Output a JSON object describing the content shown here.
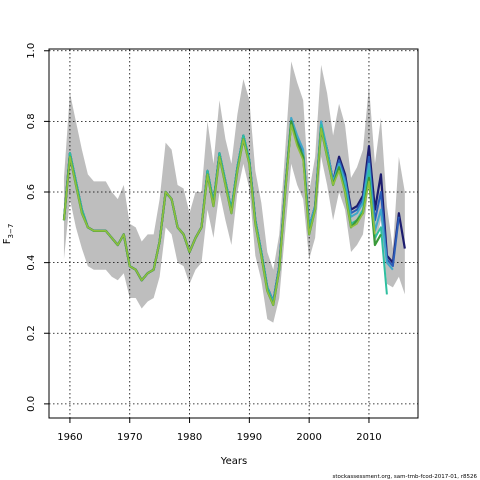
{
  "chart_data": {
    "type": "line",
    "xlabel": "Years",
    "ylabel_main": "F",
    "ylabel_sub": "3−7",
    "credit": "stockassessment.org, sam-tmb-fcod-2017-01, r8526",
    "xlim": [
      1956.5,
      2018.2
    ],
    "ylim": [
      -0.04,
      1.005
    ],
    "x_ticks": [
      1960,
      1970,
      1980,
      1990,
      2000,
      2010
    ],
    "y_ticks": [
      0.0,
      0.2,
      0.4,
      0.6,
      0.8,
      1.0
    ],
    "y_tick_labels": [
      "0.0",
      "0.2",
      "0.4",
      "0.6",
      "0.8",
      "1.0"
    ],
    "grid": true,
    "band_color": "#bebebe",
    "band": {
      "x": [
        1959,
        1960,
        1961,
        1962,
        1963,
        1964,
        1965,
        1966,
        1967,
        1968,
        1969,
        1970,
        1971,
        1972,
        1973,
        1974,
        1975,
        1976,
        1977,
        1978,
        1979,
        1980,
        1981,
        1982,
        1983,
        1984,
        1985,
        1986,
        1987,
        1988,
        1989,
        1990,
        1991,
        1992,
        1993,
        1994,
        1995,
        1996,
        1997,
        1998,
        1999,
        2000,
        2001,
        2002,
        2003,
        2004,
        2005,
        2006,
        2007,
        2008,
        2009,
        2010,
        2011,
        2012,
        2013,
        2014,
        2015,
        2016
      ],
      "upper": [
        0.64,
        0.88,
        0.8,
        0.72,
        0.65,
        0.63,
        0.63,
        0.63,
        0.6,
        0.58,
        0.62,
        0.51,
        0.5,
        0.46,
        0.48,
        0.48,
        0.58,
        0.74,
        0.72,
        0.62,
        0.61,
        0.54,
        0.6,
        0.6,
        0.8,
        0.68,
        0.86,
        0.75,
        0.68,
        0.82,
        0.92,
        0.86,
        0.66,
        0.57,
        0.43,
        0.38,
        0.48,
        0.72,
        0.97,
        0.91,
        0.86,
        0.6,
        0.7,
        0.96,
        0.88,
        0.76,
        0.85,
        0.79,
        0.64,
        0.67,
        0.72,
        0.9,
        0.68,
        0.81,
        0.56,
        0.44,
        0.7,
        0.6
      ],
      "lower": [
        0.41,
        0.58,
        0.5,
        0.44,
        0.39,
        0.38,
        0.38,
        0.38,
        0.36,
        0.35,
        0.37,
        0.3,
        0.3,
        0.27,
        0.29,
        0.3,
        0.36,
        0.5,
        0.48,
        0.4,
        0.39,
        0.34,
        0.38,
        0.4,
        0.55,
        0.47,
        0.6,
        0.52,
        0.45,
        0.6,
        0.68,
        0.61,
        0.42,
        0.35,
        0.24,
        0.23,
        0.3,
        0.49,
        0.68,
        0.62,
        0.58,
        0.41,
        0.47,
        0.7,
        0.62,
        0.52,
        0.6,
        0.55,
        0.43,
        0.45,
        0.48,
        0.62,
        0.45,
        0.52,
        0.34,
        0.33,
        0.36,
        0.31
      ]
    },
    "series": [
      {
        "color": "#1c1c6e",
        "width": 2.2,
        "x": [
          1959,
          1960,
          1961,
          1962,
          1963,
          1964,
          1965,
          1966,
          1967,
          1968,
          1969,
          1970,
          1971,
          1972,
          1973,
          1974,
          1975,
          1976,
          1977,
          1978,
          1979,
          1980,
          1981,
          1982,
          1983,
          1984,
          1985,
          1986,
          1987,
          1988,
          1989,
          1990,
          1991,
          1992,
          1993,
          1994,
          1995,
          1996,
          1997,
          1998,
          1999,
          2000,
          2001,
          2002,
          2003,
          2004,
          2005,
          2006,
          2007,
          2008,
          2009,
          2010,
          2011,
          2012,
          2013,
          2014,
          2015,
          2016
        ],
        "values": [
          0.52,
          0.71,
          0.63,
          0.55,
          0.5,
          0.49,
          0.49,
          0.49,
          0.47,
          0.45,
          0.48,
          0.39,
          0.38,
          0.35,
          0.37,
          0.38,
          0.46,
          0.6,
          0.58,
          0.5,
          0.48,
          0.43,
          0.47,
          0.5,
          0.66,
          0.57,
          0.71,
          0.63,
          0.55,
          0.67,
          0.76,
          0.69,
          0.52,
          0.43,
          0.33,
          0.29,
          0.39,
          0.61,
          0.8,
          0.75,
          0.71,
          0.5,
          0.56,
          0.79,
          0.72,
          0.63,
          0.7,
          0.65,
          0.55,
          0.56,
          0.59,
          0.73,
          0.55,
          0.65,
          0.42,
          0.4,
          0.54,
          0.44
        ]
      },
      {
        "color": "#2a5cb8",
        "width": 2.0,
        "x": [
          1959,
          1960,
          1961,
          1962,
          1963,
          1964,
          1965,
          1966,
          1967,
          1968,
          1969,
          1970,
          1971,
          1972,
          1973,
          1974,
          1975,
          1976,
          1977,
          1978,
          1979,
          1980,
          1981,
          1982,
          1983,
          1984,
          1985,
          1986,
          1987,
          1988,
          1989,
          1990,
          1991,
          1992,
          1993,
          1994,
          1995,
          1996,
          1997,
          1998,
          1999,
          2000,
          2001,
          2002,
          2003,
          2004,
          2005,
          2006,
          2007,
          2008,
          2009,
          2010,
          2011,
          2012,
          2013,
          2014,
          2015
        ],
        "values": [
          0.52,
          0.71,
          0.63,
          0.55,
          0.5,
          0.49,
          0.49,
          0.49,
          0.47,
          0.45,
          0.48,
          0.39,
          0.38,
          0.35,
          0.37,
          0.38,
          0.46,
          0.6,
          0.58,
          0.5,
          0.48,
          0.43,
          0.47,
          0.5,
          0.66,
          0.57,
          0.71,
          0.63,
          0.55,
          0.67,
          0.76,
          0.69,
          0.52,
          0.43,
          0.33,
          0.29,
          0.39,
          0.61,
          0.8,
          0.75,
          0.71,
          0.5,
          0.56,
          0.79,
          0.72,
          0.63,
          0.69,
          0.64,
          0.54,
          0.55,
          0.58,
          0.7,
          0.52,
          0.6,
          0.41,
          0.39,
          0.53
        ]
      },
      {
        "color": "#3fa7c9",
        "width": 2.0,
        "x": [
          1959,
          1960,
          1961,
          1962,
          1963,
          1964,
          1965,
          1966,
          1967,
          1968,
          1969,
          1970,
          1971,
          1972,
          1973,
          1974,
          1975,
          1976,
          1977,
          1978,
          1979,
          1980,
          1981,
          1982,
          1983,
          1984,
          1985,
          1986,
          1987,
          1988,
          1989,
          1990,
          1991,
          1992,
          1993,
          1994,
          1995,
          1996,
          1997,
          1998,
          1999,
          2000,
          2001,
          2002,
          2003,
          2004,
          2005,
          2006,
          2007,
          2008,
          2009,
          2010,
          2011,
          2012,
          2013,
          2014
        ],
        "values": [
          0.52,
          0.71,
          0.63,
          0.55,
          0.5,
          0.49,
          0.49,
          0.49,
          0.47,
          0.45,
          0.48,
          0.39,
          0.38,
          0.35,
          0.37,
          0.38,
          0.46,
          0.6,
          0.58,
          0.5,
          0.48,
          0.43,
          0.47,
          0.5,
          0.66,
          0.57,
          0.71,
          0.63,
          0.55,
          0.67,
          0.76,
          0.69,
          0.52,
          0.43,
          0.33,
          0.29,
          0.39,
          0.61,
          0.81,
          0.76,
          0.72,
          0.5,
          0.56,
          0.8,
          0.72,
          0.63,
          0.68,
          0.63,
          0.53,
          0.54,
          0.57,
          0.68,
          0.49,
          0.55,
          0.4,
          0.38
        ]
      },
      {
        "color": "#2fbfa0",
        "width": 2.0,
        "x": [
          1959,
          1960,
          1961,
          1962,
          1963,
          1964,
          1965,
          1966,
          1967,
          1968,
          1969,
          1970,
          1971,
          1972,
          1973,
          1974,
          1975,
          1976,
          1977,
          1978,
          1979,
          1980,
          1981,
          1982,
          1983,
          1984,
          1985,
          1986,
          1987,
          1988,
          1989,
          1990,
          1991,
          1992,
          1993,
          1994,
          1995,
          1996,
          1997,
          1998,
          1999,
          2000,
          2001,
          2002,
          2003,
          2004,
          2005,
          2006,
          2007,
          2008,
          2009,
          2010,
          2011,
          2012,
          2013
        ],
        "values": [
          0.52,
          0.71,
          0.63,
          0.55,
          0.5,
          0.49,
          0.49,
          0.49,
          0.47,
          0.45,
          0.48,
          0.39,
          0.38,
          0.35,
          0.37,
          0.38,
          0.46,
          0.6,
          0.58,
          0.5,
          0.48,
          0.43,
          0.47,
          0.5,
          0.66,
          0.57,
          0.71,
          0.63,
          0.55,
          0.67,
          0.76,
          0.69,
          0.52,
          0.43,
          0.33,
          0.28,
          0.38,
          0.6,
          0.8,
          0.74,
          0.7,
          0.49,
          0.55,
          0.79,
          0.71,
          0.62,
          0.67,
          0.61,
          0.51,
          0.52,
          0.55,
          0.66,
          0.47,
          0.5,
          0.31
        ]
      },
      {
        "color": "#3a9a3a",
        "width": 2.2,
        "x": [
          1959,
          1960,
          1961,
          1962,
          1963,
          1964,
          1965,
          1966,
          1967,
          1968,
          1969,
          1970,
          1971,
          1972,
          1973,
          1974,
          1975,
          1976,
          1977,
          1978,
          1979,
          1980,
          1981,
          1982,
          1983,
          1984,
          1985,
          1986,
          1987,
          1988,
          1989,
          1990,
          1991,
          1992,
          1993,
          1994,
          1995,
          1996,
          1997,
          1998,
          1999,
          2000,
          2001,
          2002,
          2003,
          2004,
          2005,
          2006,
          2007,
          2008,
          2009,
          2010,
          2011,
          2012
        ],
        "values": [
          0.52,
          0.7,
          0.62,
          0.54,
          0.5,
          0.49,
          0.49,
          0.49,
          0.47,
          0.45,
          0.48,
          0.39,
          0.38,
          0.35,
          0.37,
          0.38,
          0.46,
          0.6,
          0.58,
          0.5,
          0.48,
          0.43,
          0.47,
          0.5,
          0.65,
          0.56,
          0.7,
          0.62,
          0.54,
          0.66,
          0.75,
          0.68,
          0.51,
          0.42,
          0.32,
          0.28,
          0.38,
          0.6,
          0.8,
          0.74,
          0.7,
          0.48,
          0.55,
          0.78,
          0.7,
          0.62,
          0.67,
          0.6,
          0.5,
          0.52,
          0.54,
          0.64,
          0.45,
          0.48
        ]
      },
      {
        "color": "#8fbf3f",
        "width": 1.6,
        "x": [
          1959,
          1960,
          1961,
          1962,
          1963,
          1964,
          1965,
          1966,
          1967,
          1968,
          1969,
          1970,
          1971,
          1972,
          1973,
          1974,
          1975,
          1976,
          1977,
          1978,
          1979,
          1980,
          1981,
          1982,
          1983,
          1984,
          1985,
          1986,
          1987,
          1988,
          1989,
          1990,
          1991,
          1992,
          1993,
          1994,
          1995,
          1996,
          1997,
          1998,
          1999,
          2000,
          2001,
          2002,
          2003,
          2004,
          2005,
          2006,
          2007,
          2008,
          2009,
          2010,
          2011
        ],
        "values": [
          0.52,
          0.7,
          0.62,
          0.54,
          0.5,
          0.49,
          0.49,
          0.49,
          0.47,
          0.45,
          0.48,
          0.39,
          0.38,
          0.35,
          0.37,
          0.38,
          0.46,
          0.6,
          0.58,
          0.5,
          0.48,
          0.43,
          0.47,
          0.5,
          0.65,
          0.56,
          0.7,
          0.62,
          0.54,
          0.66,
          0.75,
          0.68,
          0.51,
          0.42,
          0.32,
          0.28,
          0.38,
          0.6,
          0.79,
          0.73,
          0.69,
          0.48,
          0.55,
          0.78,
          0.7,
          0.62,
          0.66,
          0.6,
          0.5,
          0.51,
          0.54,
          0.63,
          0.48
        ]
      }
    ]
  }
}
